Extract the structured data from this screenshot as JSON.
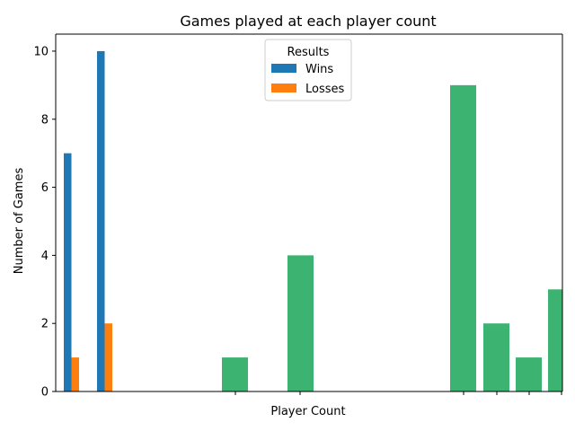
{
  "chart_data": {
    "type": "bar",
    "title": "Games played at each player count",
    "xlabel": "Player Count",
    "ylabel": "Number of Games",
    "ylim": [
      0,
      10.5
    ],
    "yticks": [
      0,
      2,
      4,
      6,
      8,
      10
    ],
    "legend": {
      "title": "Results",
      "placement": "top-center",
      "entries": [
        "Wins",
        "Losses"
      ]
    },
    "colors": {
      "wins": "#1f77b4",
      "losses": "#ff7f0e",
      "other": "#3cb371"
    },
    "grouped": [
      {
        "wins": 7,
        "losses": 1
      },
      {
        "wins": 10,
        "losses": 2
      }
    ],
    "green_values": [
      1,
      4,
      9,
      2,
      1,
      3
    ]
  }
}
